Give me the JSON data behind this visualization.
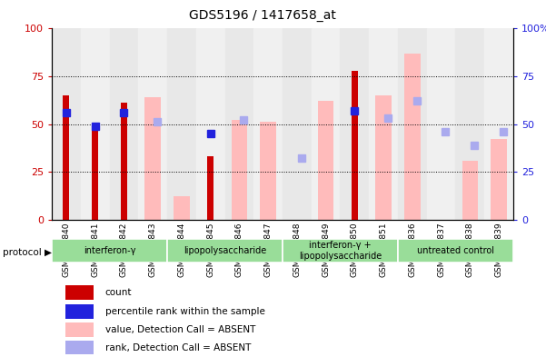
{
  "title": "GDS5196 / 1417658_at",
  "samples": [
    "GSM1304840",
    "GSM1304841",
    "GSM1304842",
    "GSM1304843",
    "GSM1304844",
    "GSM1304845",
    "GSM1304846",
    "GSM1304847",
    "GSM1304848",
    "GSM1304849",
    "GSM1304850",
    "GSM1304851",
    "GSM1304836",
    "GSM1304837",
    "GSM1304838",
    "GSM1304839"
  ],
  "count_values": [
    65,
    49,
    61,
    null,
    null,
    33,
    null,
    null,
    null,
    null,
    78,
    null,
    null,
    null,
    null,
    null
  ],
  "pct_values": [
    56,
    49,
    56,
    null,
    null,
    45,
    null,
    null,
    null,
    null,
    57,
    null,
    null,
    null,
    null,
    null
  ],
  "absent_val": [
    null,
    null,
    null,
    64,
    12,
    null,
    52,
    51,
    null,
    62,
    null,
    65,
    87,
    null,
    31,
    42
  ],
  "absent_rank": [
    null,
    null,
    null,
    51,
    null,
    null,
    52,
    null,
    32,
    null,
    null,
    53,
    62,
    46,
    39,
    46
  ],
  "groups": [
    {
      "label": "interferon-γ",
      "start": 0,
      "end": 4
    },
    {
      "label": "lipopolysaccharide",
      "start": 4,
      "end": 8
    },
    {
      "label": "interferon-γ +\nlipopolysaccharide",
      "start": 8,
      "end": 12
    },
    {
      "label": "untreated control",
      "start": 12,
      "end": 16
    }
  ],
  "left_color": "#cc0000",
  "right_color": "#2222dd",
  "absent_bar_color": "#ffbbbb",
  "absent_rank_color": "#aaaaee",
  "group_color": "#99dd99",
  "yticks": [
    0,
    25,
    50,
    75,
    100
  ]
}
